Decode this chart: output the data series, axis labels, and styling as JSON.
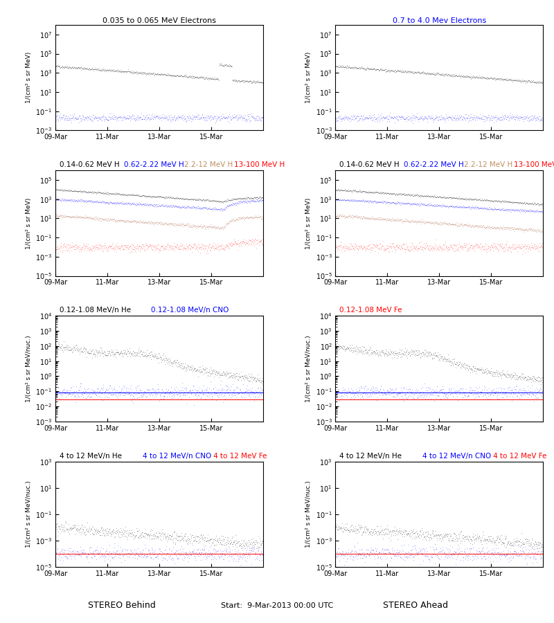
{
  "title_row1_left": "0.035 to 0.065 MeV Electrons",
  "title_row1_right": "0.7 to 4.0 Mev Electrons",
  "title_row2_left1": "0.14-0.62 MeV H",
  "title_row2_left2": "0.62-2.22 MeV H",
  "title_row2_left3": "2.2-12 MeV H",
  "title_row2_left4": "13-100 MeV H",
  "title_row3_left1": "0.12-1.08 MeV/n He",
  "title_row3_left2": "0.12-1.08 MeV/n CNO",
  "title_row3_left3": "0.12-1.08 MeV Fe",
  "title_row4_left1": "4 to 12 MeV/n He",
  "title_row4_left2": "4 to 12 MeV/n CNO",
  "title_row4_left3": "4 to 12 MeV Fe",
  "xlabel_left": "STEREO Behind",
  "xlabel_right": "STEREO Ahead",
  "xlabel_center": "Start:  9-Mar-2013 00:00 UTC",
  "xtick_labels": [
    "09-Mar",
    "11-Mar",
    "13-Mar",
    "15-Mar"
  ],
  "ylabel_electrons": "1/(cm² s sr MeV)",
  "ylabel_H": "1/(cm² s sr MeV)",
  "ylabel_heavy": "1/(cm² s sr MeV/nuc.)",
  "row1_ylim": [
    0.001,
    100000000.0
  ],
  "row2_ylim": [
    1e-05,
    1000000.0
  ],
  "row3_ylim": [
    0.001,
    10000.0
  ],
  "row4_ylim": [
    1e-05,
    1000.0
  ],
  "n_days": 8,
  "n_pts": 600,
  "background_color": "white",
  "colors": {
    "black": "#000000",
    "blue": "#0000FF",
    "red": "#FF0000",
    "brown": "#A0522D"
  }
}
